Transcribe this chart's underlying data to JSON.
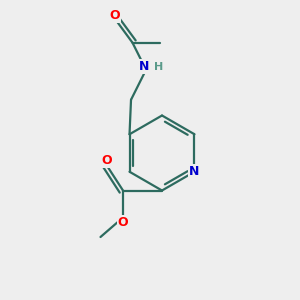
{
  "background_color": "#eeeeee",
  "bond_color": "#2d6b5f",
  "atom_colors": {
    "O": "#ff0000",
    "N": "#0000cc",
    "H": "#5a9a8a"
  },
  "figsize": [
    3.0,
    3.0
  ],
  "dpi": 100,
  "lw": 1.6
}
